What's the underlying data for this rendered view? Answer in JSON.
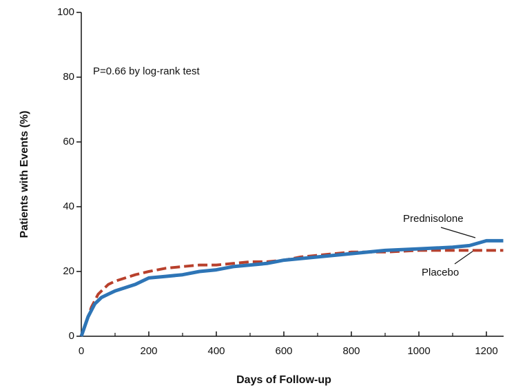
{
  "chart_data": {
    "type": "line",
    "annotation": "P=0.66 by log-rank test",
    "xlabel": "Days of Follow-up",
    "ylabel": "Patients with Events (%)",
    "x": [
      0,
      10,
      20,
      30,
      40,
      50,
      60,
      80,
      100,
      130,
      160,
      200,
      250,
      300,
      350,
      400,
      450,
      500,
      550,
      600,
      650,
      700,
      800,
      900,
      1000,
      1100,
      1150,
      1200,
      1250
    ],
    "series": [
      {
        "name": "Prednisolone",
        "color": "#2e75b6",
        "values": [
          0,
          3,
          6,
          8,
          10,
          11,
          12,
          13,
          14,
          15,
          16,
          18,
          18.5,
          19,
          20,
          20.5,
          21.5,
          22,
          22.5,
          23.5,
          24,
          24.5,
          25.5,
          26.5,
          27,
          27.5,
          28,
          29.5,
          29.5
        ]
      },
      {
        "name": "Placebo",
        "color": "#b8402c",
        "values": [
          0,
          3,
          6,
          9,
          11,
          13,
          14,
          16,
          17,
          18,
          19,
          20,
          21,
          21.5,
          22,
          22,
          22.5,
          23,
          23,
          23.5,
          24.5,
          25,
          26,
          26,
          26.5,
          26.5,
          26.5,
          26.5,
          26.5
        ]
      }
    ],
    "xlim": [
      0,
      1250
    ],
    "xticks": [
      0,
      200,
      400,
      600,
      800,
      1000,
      1200
    ],
    "xminorticks": [
      100,
      300,
      500,
      700,
      900,
      1100
    ],
    "ylim": [
      0,
      100
    ],
    "yticks": [
      0,
      20,
      40,
      60,
      80,
      100
    ]
  }
}
